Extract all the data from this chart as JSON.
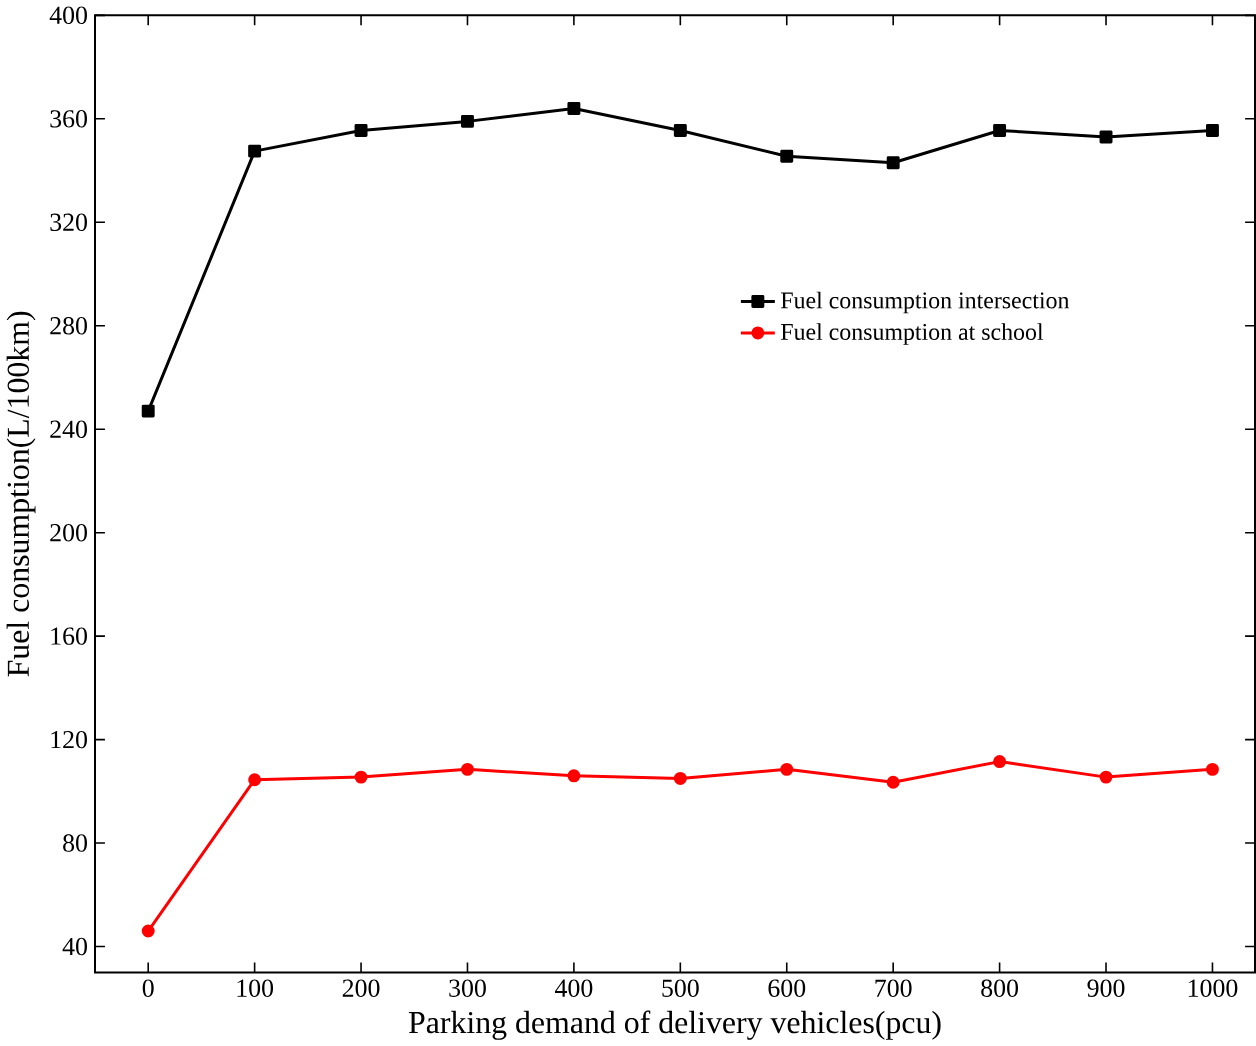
{
  "chart_data": {
    "type": "line",
    "xlabel": "Parking demand of delivery vehicles(pcu)",
    "ylabel": "Fuel consumption(L/100km)",
    "x": [
      0,
      100,
      200,
      300,
      400,
      500,
      600,
      700,
      800,
      900,
      1000
    ],
    "series": [
      {
        "name": "Fuel consumption intersection",
        "color": "#000000",
        "marker": "square",
        "values": [
          247,
          347.5,
          355.5,
          359,
          364,
          355.5,
          345.5,
          343,
          355.5,
          353,
          355.5
        ]
      },
      {
        "name": "Fuel consumption at school",
        "color": "#ff0000",
        "marker": "circle",
        "values": [
          46,
          104.5,
          105.5,
          108.5,
          106,
          105,
          108.5,
          103.5,
          111.5,
          105.5,
          108.5
        ]
      }
    ],
    "xlim": [
      -50,
      1040
    ],
    "ylim": [
      30,
      400
    ],
    "xticks": [
      0,
      100,
      200,
      300,
      400,
      500,
      600,
      700,
      800,
      900,
      1000
    ],
    "yticks": [
      40,
      80,
      120,
      160,
      200,
      240,
      280,
      320,
      360,
      400
    ],
    "grid": false,
    "legend": "right",
    "line_style": "solid"
  }
}
